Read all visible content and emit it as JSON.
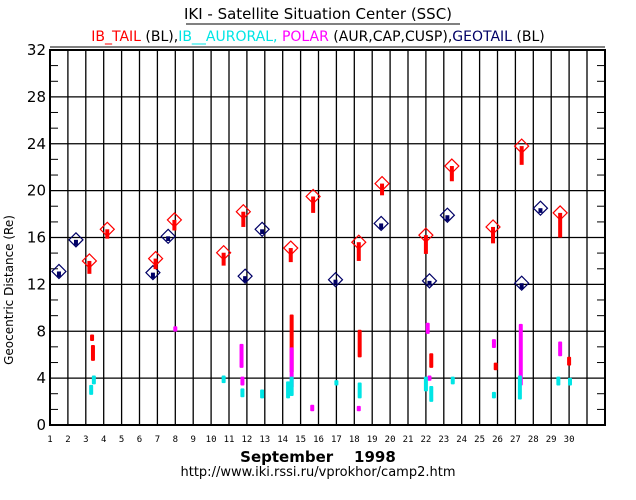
{
  "chart_data": {
    "type": "scatter",
    "title": "IKI - Satellite Situation Center (SSC)",
    "legend": [
      {
        "text": "IB_TAIL",
        "color": "#ff0000"
      },
      {
        "text": " (BL),",
        "color": "#000000"
      },
      {
        "text": "IB__AURORAL, ",
        "color": "#00e5e5"
      },
      {
        "text": "POLAR",
        "color": "#ff00ff"
      },
      {
        "text": " (AUR,CAP,CUSP),",
        "color": "#000000"
      },
      {
        "text": "GEOTAIL",
        "color": "#000066"
      },
      {
        "text": " (BL)",
        "color": "#000000"
      }
    ],
    "ylabel": "Geocentric Distance  (Re)",
    "xlabel": "September    1998",
    "footer": "http://www.iki.rssi.ru/vprokhor/camp2.htm",
    "xlim": [
      1,
      32
    ],
    "ylim": [
      0,
      32
    ],
    "yticks": [
      "0",
      "4",
      "8",
      "12",
      "16",
      "20",
      "24",
      "28",
      "32"
    ],
    "xticks": [
      "1",
      "2",
      "3",
      "4",
      "5",
      "6",
      "7",
      "8",
      "9",
      "10",
      "11",
      "12",
      "13",
      "14",
      "15",
      "16",
      "17",
      "18",
      "19",
      "20",
      "21",
      "22",
      "23",
      "24",
      "25",
      "26",
      "27",
      "28",
      "29",
      "30"
    ],
    "grid": true,
    "series": [
      {
        "name": "GEOTAIL",
        "color": "#000066",
        "marker": "diamond",
        "points": [
          {
            "day": 1.5,
            "re": 13.1,
            "tail_to": 12.6
          },
          {
            "day": 2.45,
            "re": 15.8,
            "tail_to": 15.3
          },
          {
            "day": 6.75,
            "re": 13.0,
            "tail_to": 12.5
          },
          {
            "day": 7.6,
            "re": 16.1,
            "tail_to": 15.7
          },
          {
            "day": 11.9,
            "re": 12.7,
            "tail_to": 12.2
          },
          {
            "day": 12.85,
            "re": 16.7,
            "tail_to": 16.3
          },
          {
            "day": 16.95,
            "re": 12.4,
            "tail_to": 12.0
          },
          {
            "day": 19.5,
            "re": 17.2,
            "tail_to": 16.7
          },
          {
            "day": 22.2,
            "re": 12.3,
            "tail_to": 11.9
          },
          {
            "day": 23.2,
            "re": 17.9,
            "tail_to": 17.4
          },
          {
            "day": 27.35,
            "re": 12.1,
            "tail_to": 11.6
          },
          {
            "day": 28.4,
            "re": 18.5,
            "tail_to": 18.1
          }
        ]
      },
      {
        "name": "IB_TAIL",
        "color": "#ff0000",
        "marker": "diamond",
        "points": [
          {
            "day": 3.2,
            "re": 14.0,
            "tail_to": 12.9
          },
          {
            "day": 4.2,
            "re": 16.7,
            "tail_to": 15.9
          },
          {
            "day": 6.9,
            "re": 14.2,
            "tail_to": 13.3
          },
          {
            "day": 7.95,
            "re": 17.5,
            "tail_to": 16.6
          },
          {
            "day": 10.7,
            "re": 14.7,
            "tail_to": 13.6
          },
          {
            "day": 11.8,
            "re": 18.2,
            "tail_to": 16.9
          },
          {
            "day": 14.45,
            "re": 15.1,
            "tail_to": 13.9
          },
          {
            "day": 15.7,
            "re": 19.5,
            "tail_to": 18.1
          },
          {
            "day": 18.25,
            "re": 15.6,
            "tail_to": 14.0
          },
          {
            "day": 19.55,
            "re": 20.6,
            "tail_to": 19.6
          },
          {
            "day": 22.0,
            "re": 16.2,
            "tail_to": 14.6
          },
          {
            "day": 23.45,
            "re": 22.1,
            "tail_to": 20.8
          },
          {
            "day": 25.75,
            "re": 16.9,
            "tail_to": 15.5
          },
          {
            "day": 27.35,
            "re": 23.8,
            "tail_to": 22.2
          },
          {
            "day": 29.5,
            "re": 18.1,
            "tail_to": 16.0
          }
        ]
      },
      {
        "name": "IB_TAIL (low)",
        "color": "#ff0000",
        "marker": "segment",
        "segments": [
          {
            "day": 3.35,
            "from": 7.3,
            "to": 7.6
          },
          {
            "day": 3.4,
            "from": 5.6,
            "to": 6.7
          },
          {
            "day": 14.5,
            "from": 4.6,
            "to": 9.3
          },
          {
            "day": 18.3,
            "from": 5.9,
            "to": 8.0
          },
          {
            "day": 22.3,
            "from": 5.0,
            "to": 6.0
          },
          {
            "day": 25.9,
            "from": 4.8,
            "to": 5.2
          },
          {
            "day": 30.0,
            "from": 5.2,
            "to": 5.7
          }
        ]
      },
      {
        "name": "POLAR",
        "color": "#ff00ff",
        "marker": "segment",
        "segments": [
          {
            "day": 8.0,
            "from": 8.1,
            "to": 8.3
          },
          {
            "day": 11.7,
            "from": 5.0,
            "to": 6.8
          },
          {
            "day": 11.75,
            "from": 3.5,
            "to": 4.0
          },
          {
            "day": 14.5,
            "from": 3.3,
            "to": 6.5
          },
          {
            "day": 15.65,
            "from": 1.3,
            "to": 1.6
          },
          {
            "day": 18.25,
            "from": 1.3,
            "to": 1.5
          },
          {
            "day": 22.1,
            "from": 7.9,
            "to": 8.6
          },
          {
            "day": 22.2,
            "from": 3.9,
            "to": 4.1
          },
          {
            "day": 25.8,
            "from": 6.7,
            "to": 7.2
          },
          {
            "day": 27.3,
            "from": 3.5,
            "to": 8.5
          },
          {
            "day": 29.5,
            "from": 6.0,
            "to": 7.0
          }
        ]
      },
      {
        "name": "IB__AURORAL",
        "color": "#00e5e5",
        "marker": "segment",
        "segments": [
          {
            "day": 3.3,
            "from": 2.7,
            "to": 3.3
          },
          {
            "day": 3.45,
            "from": 3.6,
            "to": 4.1
          },
          {
            "day": 10.7,
            "from": 3.7,
            "to": 4.1
          },
          {
            "day": 11.75,
            "from": 2.5,
            "to": 3.0
          },
          {
            "day": 12.85,
            "from": 2.4,
            "to": 2.9
          },
          {
            "day": 14.3,
            "from": 2.4,
            "to": 3.6
          },
          {
            "day": 14.5,
            "from": 2.6,
            "to": 4.0
          },
          {
            "day": 17.0,
            "from": 3.5,
            "to": 3.7
          },
          {
            "day": 18.3,
            "from": 2.4,
            "to": 3.5
          },
          {
            "day": 22.0,
            "from": 3.0,
            "to": 4.0
          },
          {
            "day": 22.3,
            "from": 2.1,
            "to": 3.2
          },
          {
            "day": 23.5,
            "from": 3.6,
            "to": 4.0
          },
          {
            "day": 25.8,
            "from": 2.4,
            "to": 2.7
          },
          {
            "day": 27.25,
            "from": 2.3,
            "to": 4.1
          },
          {
            "day": 29.4,
            "from": 3.5,
            "to": 4.0
          },
          {
            "day": 30.05,
            "from": 3.5,
            "to": 3.9
          }
        ]
      }
    ]
  }
}
